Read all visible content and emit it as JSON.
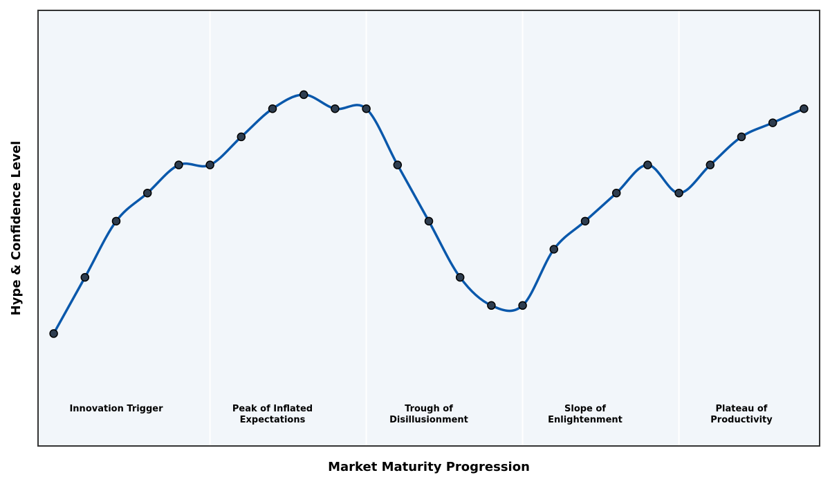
{
  "chart_data": {
    "type": "line",
    "title": "",
    "xlabel": "Market Maturity Progression",
    "ylabel": "Hype & Confidence Level",
    "x": [
      1,
      2,
      3,
      4,
      5,
      6,
      7,
      8,
      9,
      10,
      11,
      12,
      13,
      14,
      15,
      16,
      17,
      18,
      19,
      20,
      21,
      22,
      23,
      24,
      25
    ],
    "series": [
      {
        "values": [
          15,
          35,
          55,
          65,
          75,
          75,
          85,
          95,
          100,
          95,
          95,
          75,
          55,
          35,
          25,
          25,
          45,
          55,
          65,
          75,
          65,
          75,
          85,
          90,
          95
        ]
      }
    ],
    "phases": [
      {
        "label": "Innovation Trigger",
        "start": 0.5,
        "end": 6.0,
        "label_x": 3.0
      },
      {
        "label": "Peak of Inflated\nExpectations",
        "start": 6.0,
        "end": 11.0,
        "label_x": 8.0
      },
      {
        "label": "Trough of\nDisillusionment",
        "start": 11.0,
        "end": 16.0,
        "label_x": 13.0
      },
      {
        "label": "Slope of\nEnlightenment",
        "start": 16.0,
        "end": 21.0,
        "label_x": 18.0
      },
      {
        "label": "Plateau of\nProductivity",
        "start": 21.0,
        "end": 25.5,
        "label_x": 23.0
      }
    ],
    "xlim": [
      0.5,
      25.5
    ],
    "ylim": [
      -25,
      130
    ],
    "grid": false,
    "legend": "none",
    "colors": {
      "line": "#0a58ab",
      "marker_fill": "#2e3d4f",
      "marker_edge": "#000000",
      "plot_background": "#f2f6fa",
      "phase_divider": "#ffffff",
      "frame": "#333333"
    }
  }
}
